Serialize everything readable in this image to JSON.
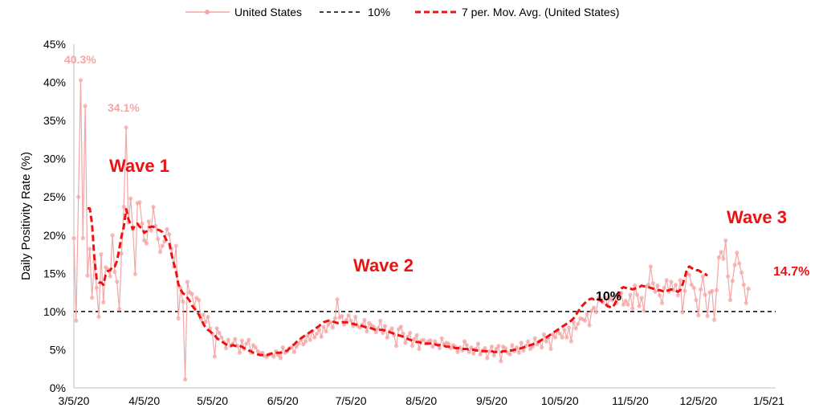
{
  "chart_data": {
    "type": "line",
    "title": "",
    "xlabel": "",
    "ylabel": "Daily Positivity Rate (%)",
    "ylim": [
      0,
      45
    ],
    "y_ticks": [
      "0%",
      "5%",
      "10%",
      "15%",
      "20%",
      "25%",
      "30%",
      "35%",
      "40%",
      "45%"
    ],
    "x_ticks": [
      "3/5/20",
      "4/5/20",
      "5/5/20",
      "6/5/20",
      "7/5/20",
      "8/5/20",
      "9/5/20",
      "10/5/20",
      "11/5/20",
      "12/5/20",
      "1/5/21"
    ],
    "x_start": "3/5/20",
    "x_end": "1/8/21",
    "grid": false,
    "legend_position": "top",
    "legend": [
      {
        "key": "daily",
        "label": "United States"
      },
      {
        "key": "threshold",
        "label": "10%"
      },
      {
        "key": "avg",
        "label": "7 per. Mov. Avg. (United States)"
      }
    ],
    "threshold": 10,
    "colors": {
      "daily": "#f4a6a6",
      "threshold": "#000000",
      "avg": "#ee1111"
    },
    "annotations": [
      {
        "id": "wave1",
        "text": "Wave 1"
      },
      {
        "id": "wave2",
        "text": "Wave 2"
      },
      {
        "id": "wave3",
        "text": "Wave 3"
      },
      {
        "id": "peak1",
        "text": "40.3%"
      },
      {
        "id": "peak2",
        "text": "34.1%"
      },
      {
        "id": "threshold-label",
        "text": "10%"
      },
      {
        "id": "last-avg",
        "text": "14.7%"
      }
    ],
    "series": [
      {
        "name": "United States",
        "values": [
          19.6,
          8.8,
          25,
          40.3,
          19.6,
          36.9,
          14.7,
          18.2,
          11.8,
          16.5,
          13.1,
          9.3,
          17.5,
          11.2,
          15.8,
          15.5,
          14.6,
          20,
          15.2,
          13.9,
          10.3,
          17.6,
          23.7,
          34.1,
          21.7,
          24.8,
          20.8,
          14.9,
          24.2,
          24.3,
          21.5,
          19.3,
          18.9,
          21.8,
          20.6,
          23.7,
          21.2,
          19.5,
          17.8,
          18.6,
          19.2,
          20.8,
          20.1,
          18.2,
          15.9,
          18.6,
          9.1,
          13.1,
          11.3,
          1.1,
          13.9,
          12.5,
          12.3,
          10.6,
          11.8,
          11.5,
          9,
          9.6,
          8.6,
          9.3,
          7.8,
          7.1,
          4.1,
          7.8,
          7.2,
          6.6,
          6,
          5.2,
          6.3,
          5.5,
          5.8,
          6.4,
          5.5,
          4.6,
          6.2,
          5.1,
          5.8,
          6.3,
          4.6,
          5.6,
          5.3,
          4.8,
          4.5,
          4.6,
          4.2,
          4.1,
          4.4,
          4.4,
          4.1,
          4.8,
          4.3,
          3.9,
          5.3,
          4.6,
          4.8,
          5.2,
          5.3,
          4.7,
          5.4,
          5.8,
          6.3,
          5.7,
          6.1,
          6.9,
          6.3,
          7.4,
          6.6,
          7.1,
          7.6,
          6.7,
          8,
          7.4,
          8.3,
          8.6,
          7.9,
          9.1,
          11.6,
          9.2,
          9.4,
          8.3,
          8.9,
          9.5,
          8.8,
          8.1,
          9.3,
          8.1,
          7.9,
          8.3,
          8.9,
          7.4,
          8.5,
          8.2,
          8,
          7.3,
          7.8,
          8.8,
          7.2,
          8.1,
          6.6,
          7.4,
          7.8,
          6.9,
          5.5,
          7.7,
          8,
          7.1,
          5.9,
          6.7,
          7.2,
          5.5,
          6.4,
          6.9,
          5.1,
          6.2,
          6.3,
          5.8,
          6.1,
          6.2,
          5.4,
          6.1,
          5.7,
          5.2,
          6.5,
          5.7,
          5.9,
          5.8,
          5.2,
          5.6,
          5.4,
          4.7,
          5.3,
          4.9,
          6.1,
          5.6,
          4.7,
          5.3,
          4.5,
          5.1,
          5.8,
          4.4,
          4.9,
          5.2,
          3.9,
          4.8,
          5.4,
          4.3,
          5.1,
          5.5,
          3.5,
          5.4,
          5.2,
          4.6,
          4.4,
          5.6,
          4.8,
          5.3,
          4.6,
          5.9,
          4.9,
          5.5,
          6.1,
          5.1,
          5.4,
          6.5,
          5.7,
          6.1,
          5.3,
          7,
          6.1,
          6.6,
          5.1,
          7,
          6.6,
          7.5,
          7.1,
          6.6,
          7.6,
          6.6,
          7.9,
          6.1,
          8.6,
          7.8,
          8.4,
          9.1,
          9,
          8.8,
          9.7,
          8.2,
          10.1,
          10.5,
          9.9,
          11.8,
          11.7,
          11.2,
          11.8,
          10.8,
          11.8,
          11.5,
          12.2,
          11.1,
          11.9,
          12.4,
          10.9,
          11.4,
          10.9,
          12.2,
          10.4,
          13.4,
          12.2,
          10.7,
          11.8,
          10.1,
          13.3,
          13.5,
          15.9,
          13.7,
          12.6,
          13.4,
          12.1,
          11.1,
          13.1,
          14.1,
          12.6,
          13.9,
          12.8,
          13.5,
          12.1,
          14.1,
          9.9,
          12.7,
          15,
          14.8,
          13.5,
          13.1,
          11.5,
          9.5,
          12.9,
          14.6,
          12.2,
          9.4,
          12.5,
          12.7,
          8.9,
          12.8,
          17.1,
          17.8,
          16.9,
          19.3,
          14.6,
          11.5,
          14,
          16.1,
          17.7,
          16.3,
          15.1,
          13.5,
          11.1,
          13
        ]
      },
      {
        "name": "7 per. Mov. Avg. (United States)",
        "values": [
          null,
          null,
          null,
          null,
          null,
          null,
          23.5,
          23.5,
          21.5,
          17.1,
          14.3,
          13.8,
          13.8,
          13.5,
          14.8,
          15.3,
          15.4,
          15.9,
          15.9,
          16.6,
          18.2,
          19.9,
          21.1,
          23.4,
          22.1,
          21.4,
          20.8,
          21.3,
          21.5,
          21.1,
          20.9,
          20.3,
          20.5,
          21.0,
          21.1,
          21.1,
          20.8,
          20.7,
          20.6,
          20.4,
          19.8,
          19.2,
          19.0,
          17.5,
          16.3,
          15.2,
          13.6,
          12.9,
          12.4,
          12.2,
          11.8,
          11.4,
          10.8,
          10.4,
          10.1,
          9.6,
          9.0,
          8.4,
          7.9,
          7.6,
          7.4,
          7.1,
          6.9,
          6.5,
          6.3,
          6.1,
          5.9,
          5.7,
          5.6,
          5.5,
          5.6,
          5.5,
          5.5,
          5.5,
          5.4,
          5.2,
          5.1,
          4.9,
          4.8,
          4.6,
          4.5,
          4.4,
          4.3,
          4.3,
          4.3,
          4.3,
          4.4,
          4.5,
          4.6,
          4.6,
          4.6,
          4.6,
          4.7,
          4.8,
          4.9,
          5.2,
          5.5,
          5.7,
          6.0,
          6.2,
          6.5,
          6.7,
          6.9,
          7.1,
          7.3,
          7.5,
          7.7,
          7.9,
          8.1,
          8.4,
          8.6,
          8.7,
          8.8,
          8.8,
          8.7,
          8.6,
          8.5,
          8.5,
          8.6,
          8.6,
          8.6,
          8.5,
          8.4,
          8.4,
          8.3,
          8.3,
          8.2,
          8.1,
          8.0,
          7.9,
          7.9,
          7.8,
          7.7,
          7.6,
          7.6,
          7.6,
          7.6,
          7.5,
          7.4,
          7.3,
          7.2,
          7.1,
          7.0,
          6.9,
          6.8,
          6.7,
          6.6,
          6.4,
          6.3,
          6.2,
          6.1,
          6.0,
          6.0,
          5.9,
          5.9,
          5.8,
          5.8,
          5.8,
          5.7,
          5.7,
          5.6,
          5.6,
          5.5,
          5.5,
          5.4,
          5.4,
          5.3,
          5.3,
          5.2,
          5.2,
          5.2,
          5.1,
          5.1,
          5.1,
          5.0,
          5.0,
          5.0,
          4.9,
          4.9,
          4.9,
          4.8,
          4.8,
          4.8,
          4.8,
          4.8,
          4.7,
          4.7,
          4.7,
          4.7,
          4.8,
          4.8,
          4.8,
          4.9,
          4.9,
          5.0,
          5.0,
          5.1,
          5.2,
          5.3,
          5.4,
          5.5,
          5.6,
          5.7,
          5.8,
          5.9,
          6.1,
          6.3,
          6.5,
          6.6,
          6.8,
          7.0,
          7.2,
          7.4,
          7.6,
          7.8,
          8.0,
          8.2,
          8.4,
          8.6,
          8.8,
          9.1,
          9.5,
          10.0,
          10.4,
          10.8,
          11.1,
          11.4,
          11.6,
          11.7,
          11.6,
          11.7,
          11.6,
          11.4,
          11.2,
          11.0,
          10.7,
          10.6,
          10.5,
          10.9,
          11.5,
          12.3,
          13.0,
          13.2,
          13.1,
          13.0,
          13.0,
          12.9,
          13.0,
          13.1,
          13.2,
          13.4,
          13.3,
          13.3,
          13.2,
          13.1,
          13.0,
          12.9,
          12.8,
          12.8,
          12.7,
          12.6,
          12.7,
          12.8,
          12.9,
          12.8,
          12.7,
          12.6,
          12.8,
          13.5,
          14.5,
          15.6,
          15.9,
          15.7,
          15.5,
          15.4,
          15.4,
          15.2,
          15.0,
          14.9,
          14.7
        ]
      }
    ]
  }
}
